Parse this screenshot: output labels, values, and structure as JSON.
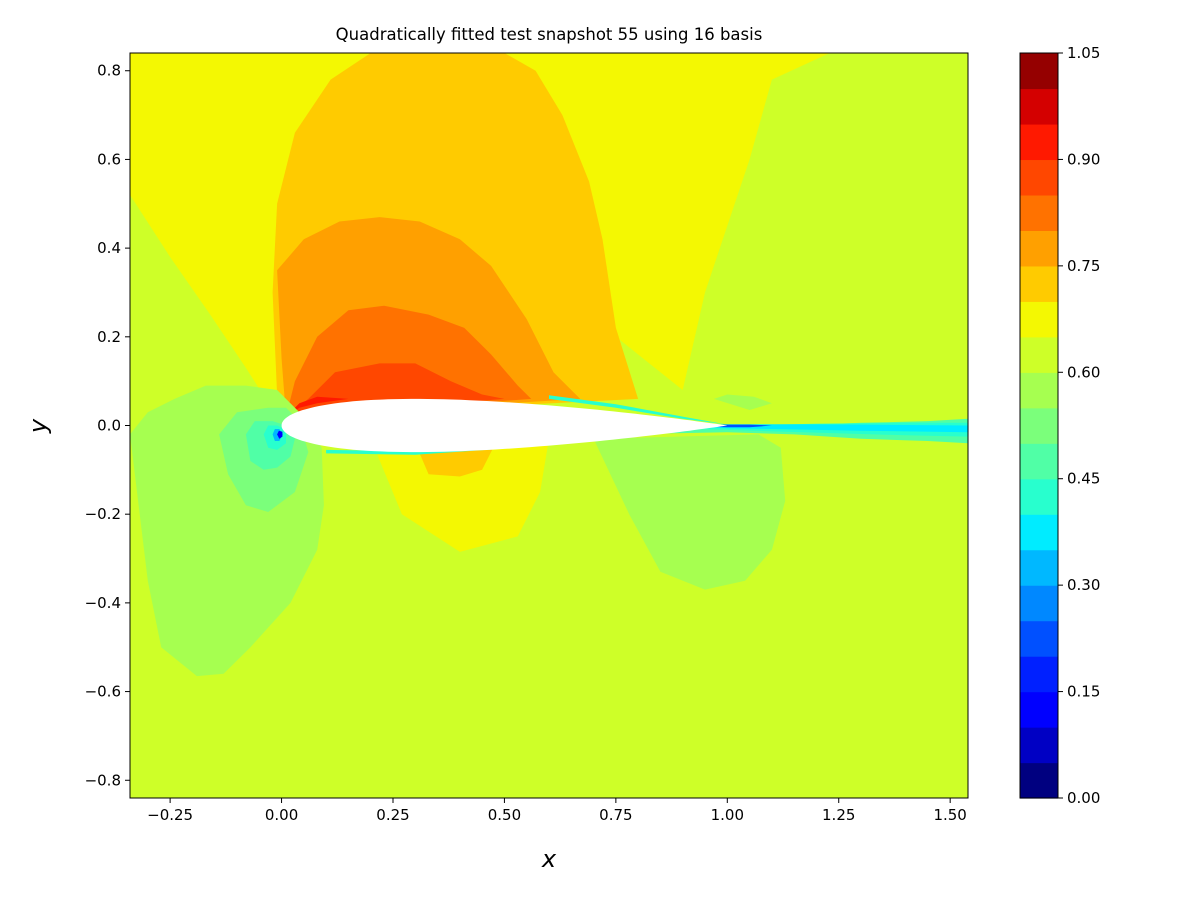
{
  "chart_data": {
    "type": "heatmap",
    "subtype": "filled-contour",
    "title": "Quadratically fitted test snapshot 55 using 16 basis",
    "xlabel": "x",
    "ylabel": "y",
    "xlim": [
      -0.34,
      1.54
    ],
    "ylim": [
      -0.84,
      0.84
    ],
    "xticks": [
      -0.25,
      0.0,
      0.25,
      0.5,
      0.75,
      1.0,
      1.25,
      1.5
    ],
    "xtick_labels": [
      "−0.25",
      "0.00",
      "0.25",
      "0.50",
      "0.75",
      "1.00",
      "1.25",
      "1.50"
    ],
    "yticks": [
      -0.8,
      -0.6,
      -0.4,
      -0.2,
      0.0,
      0.2,
      0.4,
      0.6,
      0.8
    ],
    "ytick_labels": [
      "−0.8",
      "−0.6",
      "−0.4",
      "−0.2",
      "0.0",
      "0.2",
      "0.4",
      "0.6",
      "0.8"
    ],
    "grid": false,
    "colormap": "jet",
    "colorbar": {
      "range": [
        0.0,
        1.05
      ],
      "levels": 21,
      "level_step": 0.05,
      "ticks": [
        0.0,
        0.15,
        0.3,
        0.45,
        0.6,
        0.75,
        0.9,
        1.05
      ],
      "tick_labels": [
        "0.00",
        "0.15",
        "0.30",
        "0.45",
        "0.60",
        "0.75",
        "0.90",
        "1.05"
      ],
      "colors": [
        "#000080",
        "#0000c4",
        "#0000ff",
        "#0020ff",
        "#0050ff",
        "#0088ff",
        "#00b8ff",
        "#00ecff",
        "#28ffce",
        "#50ffa6",
        "#7bff7b",
        "#a6ff50",
        "#ceff28",
        "#f4f802",
        "#ffcb00",
        "#ffa000",
        "#ff7200",
        "#ff4700",
        "#ff1900",
        "#d40000",
        "#950000"
      ]
    },
    "background_level": 0.625,
    "regions": [
      {
        "level": 0.675,
        "polygon": [
          [
            -0.34,
            0.52
          ],
          [
            -0.25,
            0.38
          ],
          [
            -0.16,
            0.25
          ],
          [
            -0.08,
            0.13
          ],
          [
            -0.01,
            0.02
          ],
          [
            0.02,
            0.02
          ],
          [
            0.3,
            0.2
          ],
          [
            0.55,
            0.3
          ],
          [
            0.75,
            0.2
          ],
          [
            0.9,
            0.08
          ],
          [
            0.95,
            0.3
          ],
          [
            1.0,
            0.45
          ],
          [
            1.05,
            0.6
          ],
          [
            1.1,
            0.78
          ],
          [
            1.23,
            0.84
          ],
          [
            -0.34,
            0.84
          ]
        ]
      },
      {
        "level": 0.675,
        "polygon": [
          [
            0.2,
            -0.03
          ],
          [
            0.27,
            -0.2
          ],
          [
            0.4,
            -0.285
          ],
          [
            0.53,
            -0.25
          ],
          [
            0.58,
            -0.15
          ],
          [
            0.6,
            -0.03
          ]
        ]
      },
      {
        "level": 0.725,
        "polygon": [
          [
            0.01,
            0.02
          ],
          [
            -0.01,
            0.07
          ],
          [
            -0.02,
            0.3
          ],
          [
            -0.01,
            0.5
          ],
          [
            0.03,
            0.66
          ],
          [
            0.11,
            0.78
          ],
          [
            0.2,
            0.84
          ],
          [
            0.5,
            0.84
          ],
          [
            0.57,
            0.8
          ],
          [
            0.63,
            0.7
          ],
          [
            0.69,
            0.55
          ],
          [
            0.72,
            0.42
          ],
          [
            0.75,
            0.22
          ],
          [
            0.8,
            0.06
          ]
        ]
      },
      {
        "level": 0.725,
        "polygon": [
          [
            0.3,
            -0.04
          ],
          [
            0.33,
            -0.11
          ],
          [
            0.4,
            -0.115
          ],
          [
            0.45,
            -0.1
          ],
          [
            0.48,
            -0.04
          ]
        ]
      },
      {
        "level": 0.775,
        "polygon": [
          [
            0.01,
            0.02
          ],
          [
            0.0,
            0.15
          ],
          [
            -0.01,
            0.35
          ],
          [
            0.05,
            0.42
          ],
          [
            0.13,
            0.46
          ],
          [
            0.22,
            0.47
          ],
          [
            0.31,
            0.46
          ],
          [
            0.4,
            0.42
          ],
          [
            0.47,
            0.36
          ],
          [
            0.55,
            0.24
          ],
          [
            0.61,
            0.12
          ],
          [
            0.67,
            0.06
          ]
        ]
      },
      {
        "level": 0.825,
        "polygon": [
          [
            0.01,
            0.02
          ],
          [
            0.03,
            0.1
          ],
          [
            0.08,
            0.2
          ],
          [
            0.15,
            0.26
          ],
          [
            0.23,
            0.27
          ],
          [
            0.33,
            0.25
          ],
          [
            0.41,
            0.22
          ],
          [
            0.47,
            0.16
          ],
          [
            0.53,
            0.09
          ],
          [
            0.56,
            0.06
          ]
        ]
      },
      {
        "level": 0.875,
        "polygon": [
          [
            0.01,
            0.02
          ],
          [
            0.06,
            0.06
          ],
          [
            0.12,
            0.12
          ],
          [
            0.22,
            0.14
          ],
          [
            0.3,
            0.14
          ],
          [
            0.38,
            0.1
          ],
          [
            0.45,
            0.07
          ],
          [
            0.5,
            0.06
          ]
        ]
      },
      {
        "level": 0.925,
        "polygon": [
          [
            0.01,
            0.02
          ],
          [
            0.04,
            0.04
          ],
          [
            0.08,
            0.05
          ],
          [
            0.15,
            0.06
          ],
          [
            0.08,
            0.065
          ],
          [
            0.04,
            0.05
          ]
        ]
      },
      {
        "level": 0.575,
        "polygon": [
          [
            -0.34,
            -0.02
          ],
          [
            -0.3,
            -0.35
          ],
          [
            -0.27,
            -0.5
          ],
          [
            -0.19,
            -0.565
          ],
          [
            -0.13,
            -0.56
          ],
          [
            -0.07,
            -0.5
          ],
          [
            0.02,
            -0.4
          ],
          [
            0.08,
            -0.28
          ],
          [
            0.095,
            -0.18
          ],
          [
            0.09,
            -0.05
          ],
          [
            0.05,
            0.02
          ],
          [
            -0.01,
            0.08
          ],
          [
            -0.08,
            0.09
          ],
          [
            -0.17,
            0.09
          ],
          [
            -0.24,
            0.06
          ],
          [
            -0.3,
            0.03
          ]
        ]
      },
      {
        "level": 0.575,
        "polygon": [
          [
            0.7,
            -0.03
          ],
          [
            0.78,
            -0.2
          ],
          [
            0.85,
            -0.33
          ],
          [
            0.95,
            -0.37
          ],
          [
            1.04,
            -0.35
          ],
          [
            1.1,
            -0.28
          ],
          [
            1.13,
            -0.17
          ],
          [
            1.12,
            -0.05
          ],
          [
            1.07,
            -0.02
          ]
        ]
      },
      {
        "level": 0.575,
        "polygon": [
          [
            0.97,
            0.06
          ],
          [
            1.0,
            0.07
          ],
          [
            1.06,
            0.065
          ],
          [
            1.1,
            0.05
          ],
          [
            1.05,
            0.035
          ]
        ]
      },
      {
        "level": 0.525,
        "polygon": [
          [
            -0.14,
            -0.02
          ],
          [
            -0.12,
            -0.11
          ],
          [
            -0.08,
            -0.18
          ],
          [
            -0.03,
            -0.195
          ],
          [
            0.03,
            -0.15
          ],
          [
            0.06,
            -0.06
          ],
          [
            0.04,
            0.01
          ],
          [
            0.01,
            0.04
          ],
          [
            -0.03,
            0.04
          ],
          [
            -0.1,
            0.03
          ]
        ]
      },
      {
        "level": 0.475,
        "polygon": [
          [
            -0.08,
            -0.02
          ],
          [
            -0.07,
            -0.08
          ],
          [
            -0.04,
            -0.1
          ],
          [
            -0.01,
            -0.095
          ],
          [
            0.02,
            -0.07
          ],
          [
            0.03,
            -0.03
          ],
          [
            0.01,
            0.0
          ],
          [
            -0.02,
            0.01
          ],
          [
            -0.06,
            0.01
          ]
        ]
      },
      {
        "level": 0.425,
        "polygon": [
          [
            -0.04,
            -0.02
          ],
          [
            -0.03,
            -0.05
          ],
          [
            -0.01,
            -0.055
          ],
          [
            0.01,
            -0.04
          ],
          [
            0.01,
            -0.01
          ],
          [
            -0.01,
            0.0
          ],
          [
            -0.03,
            0.0
          ]
        ]
      },
      {
        "level": 0.35,
        "polygon": [
          [
            -0.02,
            -0.02
          ],
          [
            -0.015,
            -0.035
          ],
          [
            -0.005,
            -0.035
          ],
          [
            0.003,
            -0.02
          ],
          [
            -0.005,
            -0.008
          ],
          [
            -0.015,
            -0.008
          ]
        ]
      },
      {
        "level": 0.15,
        "polygon": [
          [
            -0.01,
            -0.02
          ],
          [
            -0.005,
            -0.03
          ],
          [
            0.002,
            -0.025
          ],
          [
            0.002,
            -0.014
          ],
          [
            -0.006,
            -0.012
          ]
        ]
      },
      {
        "level": 0.475,
        "polygon": [
          [
            0.72,
            -0.005
          ],
          [
            0.85,
            -0.01
          ],
          [
            1.0,
            -0.005
          ],
          [
            1.15,
            0.0
          ],
          [
            1.3,
            0.006
          ],
          [
            1.45,
            0.01
          ],
          [
            1.54,
            0.015
          ],
          [
            1.54,
            -0.04
          ],
          [
            1.45,
            -0.035
          ],
          [
            1.3,
            -0.03
          ],
          [
            1.15,
            -0.02
          ],
          [
            1.0,
            -0.015
          ],
          [
            0.85,
            -0.018
          ],
          [
            0.72,
            -0.012
          ]
        ]
      },
      {
        "level": 0.425,
        "polygon": [
          [
            0.82,
            0.0
          ],
          [
            1.0,
            0.0
          ],
          [
            1.2,
            0.004
          ],
          [
            1.4,
            0.006
          ],
          [
            1.54,
            0.006
          ],
          [
            1.54,
            -0.025
          ],
          [
            1.4,
            -0.022
          ],
          [
            1.2,
            -0.016
          ],
          [
            1.0,
            -0.01
          ],
          [
            0.82,
            -0.005
          ]
        ]
      },
      {
        "level": 0.375,
        "polygon": [
          [
            0.9,
            0.0
          ],
          [
            1.0,
            0.003
          ],
          [
            1.1,
            0.003
          ],
          [
            1.3,
            0.002
          ],
          [
            1.54,
            0.0
          ],
          [
            1.54,
            -0.015
          ],
          [
            1.3,
            -0.012
          ],
          [
            1.1,
            -0.008
          ],
          [
            1.0,
            -0.006
          ],
          [
            0.9,
            -0.002
          ]
        ]
      },
      {
        "level": 0.225,
        "polygon": [
          [
            0.93,
            0.0
          ],
          [
            1.0,
            0.002
          ],
          [
            1.05,
            0.002
          ],
          [
            1.1,
            0.0
          ],
          [
            1.05,
            -0.004
          ],
          [
            1.0,
            -0.004
          ],
          [
            0.93,
            -0.002
          ]
        ]
      },
      {
        "level": 0.425,
        "polygon": [
          [
            0.1,
            -0.055
          ],
          [
            0.3,
            -0.058
          ],
          [
            0.5,
            -0.045
          ],
          [
            0.7,
            -0.018
          ],
          [
            0.9,
            -0.004
          ],
          [
            0.9,
            -0.01
          ],
          [
            0.7,
            -0.024
          ],
          [
            0.5,
            -0.052
          ],
          [
            0.3,
            -0.066
          ],
          [
            0.1,
            -0.063
          ]
        ]
      },
      {
        "level": 0.3,
        "polygon": [
          [
            0.5,
            -0.045
          ],
          [
            0.7,
            -0.018
          ],
          [
            0.9,
            -0.004
          ],
          [
            1.0,
            0.0
          ],
          [
            0.9,
            -0.008
          ],
          [
            0.7,
            -0.022
          ],
          [
            0.5,
            -0.05
          ]
        ]
      },
      {
        "level": 0.425,
        "polygon": [
          [
            0.6,
            0.06
          ],
          [
            0.75,
            0.04
          ],
          [
            0.9,
            0.015
          ],
          [
            1.0,
            0.002
          ],
          [
            0.9,
            0.02
          ],
          [
            0.75,
            0.048
          ],
          [
            0.6,
            0.068
          ]
        ]
      }
    ],
    "airfoil": {
      "leading_edge": [
        0.0,
        0.0
      ],
      "trailing_edge": [
        1.0,
        0.0
      ],
      "max_half_thickness": 0.06,
      "fill": "#ffffff"
    }
  }
}
